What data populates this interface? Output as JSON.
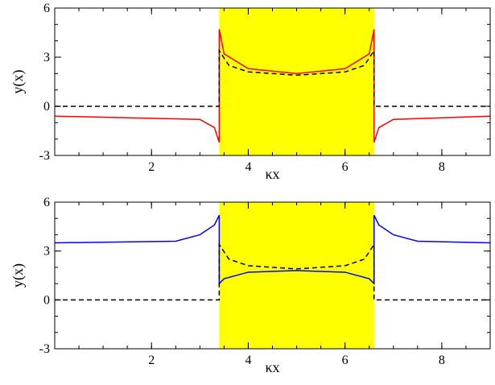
{
  "chart_data": [
    {
      "type": "line",
      "xlabel": "κx",
      "ylabel": "y(x)",
      "xlim": [
        0,
        9
      ],
      "ylim": [
        -3,
        6
      ],
      "x_ticks": [
        2,
        4,
        6,
        8
      ],
      "y_ticks": [
        -3,
        0,
        3,
        6
      ],
      "x_minor_step": 0.5,
      "y_minor_step": 1,
      "shaded_region": {
        "x": [
          3.4,
          6.6
        ],
        "color": "#ffff00"
      },
      "series": [
        {
          "style": "solid",
          "color": "#ff0000",
          "points": [
            [
              0,
              -0.6
            ],
            [
              3.0,
              -0.8
            ],
            [
              3.3,
              -1.3
            ],
            [
              3.4,
              -2.2
            ],
            [
              3.4,
              4.7
            ],
            [
              3.5,
              3.2
            ],
            [
              4.0,
              2.3
            ],
            [
              5.0,
              2.0
            ],
            [
              6.0,
              2.3
            ],
            [
              6.5,
              3.2
            ],
            [
              6.6,
              4.7
            ],
            [
              6.6,
              -2.2
            ],
            [
              6.7,
              -1.3
            ],
            [
              7.0,
              -0.8
            ],
            [
              9.0,
              -0.6
            ]
          ]
        },
        {
          "style": "dashed",
          "color": "#000000",
          "points": [
            [
              0,
              0
            ],
            [
              3.4,
              0
            ],
            [
              3.4,
              3.4
            ],
            [
              3.6,
              2.5
            ],
            [
              4.0,
              2.1
            ],
            [
              5.0,
              1.9
            ],
            [
              6.0,
              2.1
            ],
            [
              6.4,
              2.5
            ],
            [
              6.6,
              3.4
            ],
            [
              6.6,
              0
            ],
            [
              9.0,
              0
            ]
          ]
        }
      ]
    },
    {
      "type": "line",
      "xlabel": "κx",
      "ylabel": "y(x)",
      "xlim": [
        0,
        9
      ],
      "ylim": [
        -3,
        6
      ],
      "x_ticks": [
        2,
        4,
        6,
        8
      ],
      "y_ticks": [
        -3,
        0,
        3,
        6
      ],
      "x_minor_step": 0.5,
      "y_minor_step": 1,
      "shaded_region": {
        "x": [
          3.4,
          6.6
        ],
        "color": "#ffff00"
      },
      "series": [
        {
          "style": "solid",
          "color": "#0000ff",
          "points": [
            [
              0,
              3.5
            ],
            [
              2.5,
              3.6
            ],
            [
              3.0,
              4.0
            ],
            [
              3.3,
              4.6
            ],
            [
              3.4,
              5.2
            ],
            [
              3.4,
              1.0
            ],
            [
              3.5,
              1.3
            ],
            [
              4.0,
              1.7
            ],
            [
              5.0,
              1.8
            ],
            [
              6.0,
              1.7
            ],
            [
              6.5,
              1.3
            ],
            [
              6.6,
              1.0
            ],
            [
              6.6,
              5.2
            ],
            [
              6.7,
              4.6
            ],
            [
              7.0,
              4.0
            ],
            [
              7.5,
              3.6
            ],
            [
              9.0,
              3.5
            ]
          ]
        },
        {
          "style": "dashed",
          "color": "#000000",
          "points": [
            [
              0,
              0
            ],
            [
              3.4,
              0
            ],
            [
              3.4,
              3.4
            ],
            [
              3.6,
              2.5
            ],
            [
              4.0,
              2.1
            ],
            [
              5.0,
              1.9
            ],
            [
              6.0,
              2.1
            ],
            [
              6.4,
              2.5
            ],
            [
              6.6,
              3.4
            ],
            [
              6.6,
              0
            ],
            [
              9.0,
              0
            ]
          ]
        }
      ]
    }
  ]
}
